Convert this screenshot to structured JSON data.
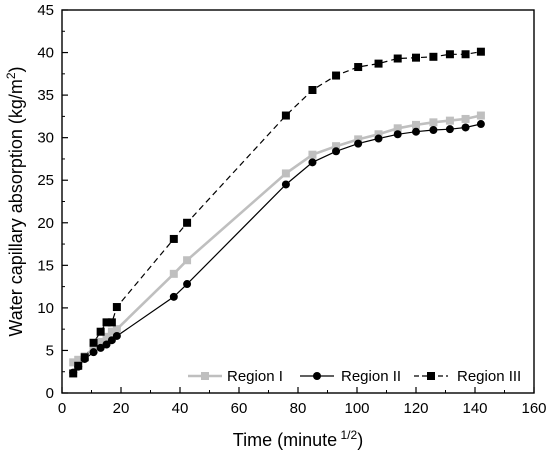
{
  "chart_data": {
    "type": "line",
    "title": "",
    "xlabel_main": "Time (minute",
    "xlabel_sup": "1/2",
    "xlabel_close": ")",
    "ylabel_main": "Water capillary absorption (kg/m",
    "ylabel_sup": "2",
    "ylabel_close": ")",
    "xlim": [
      0,
      160
    ],
    "ylim": [
      0,
      45
    ],
    "xticks": [
      0,
      20,
      40,
      60,
      80,
      100,
      120,
      140,
      160
    ],
    "yticks": [
      0,
      5,
      10,
      15,
      20,
      25,
      30,
      35,
      40,
      45
    ],
    "grid": false,
    "legend_position": "bottom-right",
    "series": [
      {
        "name": "Region I",
        "color": "#bfbfbf",
        "marker": "square",
        "line": "solid",
        "x": [
          3.8,
          5.5,
          7.7,
          10.7,
          13.1,
          15.1,
          16.9,
          18.6,
          37.9,
          42.4,
          75.9,
          84.9,
          92.9,
          100.4,
          107.3,
          113.8,
          120,
          125.9,
          131.5,
          136.8,
          142
        ],
        "y": [
          3.6,
          3.9,
          4.3,
          5.3,
          6.0,
          6.6,
          7.2,
          7.5,
          14.0,
          15.6,
          25.8,
          28.0,
          29.0,
          29.8,
          30.4,
          31.1,
          31.5,
          31.8,
          32.0,
          32.2,
          32.6
        ]
      },
      {
        "name": "Region II",
        "color": "#000000",
        "marker": "circle",
        "line": "solid",
        "x": [
          3.8,
          5.5,
          7.7,
          10.7,
          13.1,
          15.1,
          16.9,
          18.6,
          37.9,
          42.4,
          75.9,
          84.9,
          92.9,
          100.4,
          107.3,
          113.8,
          120,
          125.9,
          131.5,
          136.8,
          142
        ],
        "y": [
          2.4,
          3.1,
          4.0,
          4.8,
          5.3,
          5.7,
          6.2,
          6.7,
          11.3,
          12.8,
          24.5,
          27.1,
          28.4,
          29.3,
          29.9,
          30.4,
          30.7,
          30.9,
          31.0,
          31.2,
          31.6
        ]
      },
      {
        "name": "Region III",
        "color": "#000000",
        "marker": "square",
        "line": "dashed",
        "x": [
          3.8,
          5.5,
          7.7,
          10.7,
          13.1,
          15.1,
          16.9,
          18.6,
          37.9,
          42.4,
          75.9,
          84.9,
          92.9,
          100.4,
          107.3,
          113.8,
          120,
          125.9,
          131.5,
          136.8,
          142
        ],
        "y": [
          2.3,
          3.2,
          4.2,
          5.9,
          7.2,
          8.3,
          8.3,
          10.1,
          18.1,
          20.0,
          32.6,
          35.6,
          37.3,
          38.3,
          38.7,
          39.3,
          39.4,
          39.5,
          39.8,
          39.8,
          40.1
        ]
      }
    ]
  }
}
